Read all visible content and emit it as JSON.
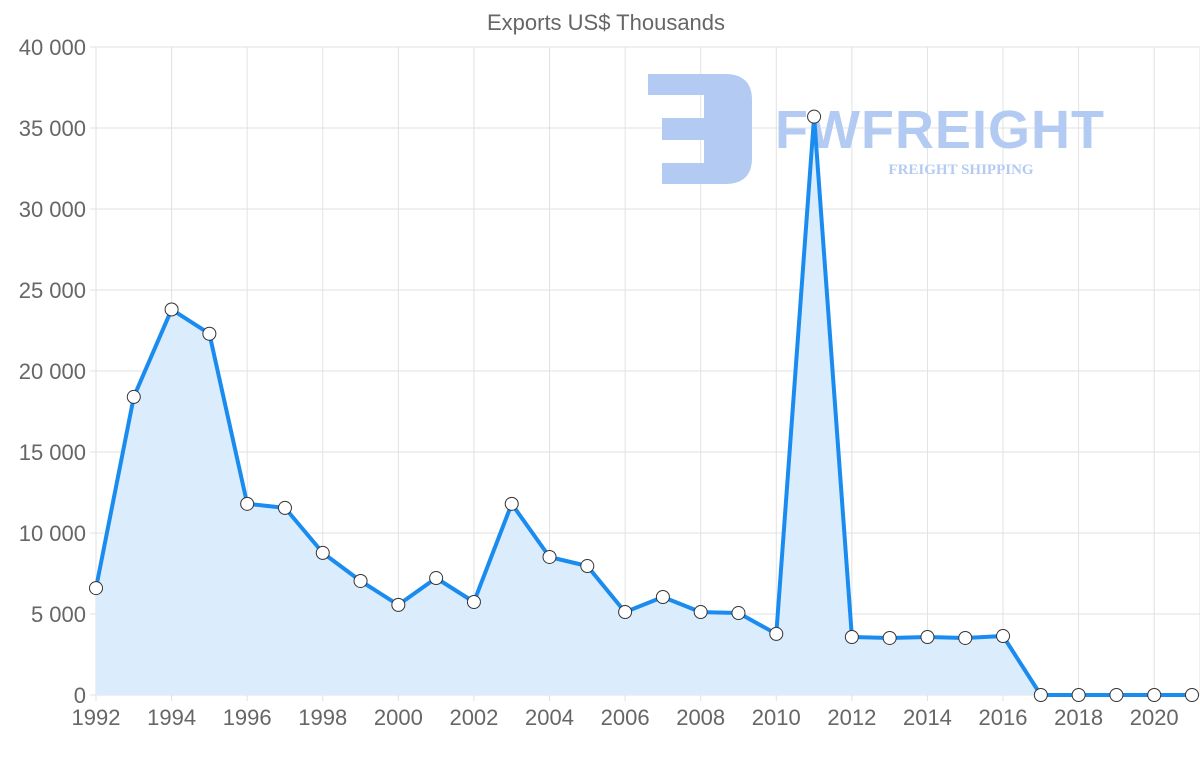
{
  "chart_data": {
    "type": "area",
    "title": "Exports US$ Thousands",
    "xlabel": "",
    "ylabel": "",
    "x": [
      1992,
      1993,
      1994,
      1995,
      1996,
      1997,
      1998,
      1999,
      2000,
      2001,
      2002,
      2003,
      2004,
      2005,
      2006,
      2007,
      2008,
      2009,
      2010,
      2011,
      2012,
      2013,
      2014,
      2015,
      2016,
      2017,
      2018,
      2019,
      2020,
      2021
    ],
    "series": [
      {
        "name": "Exports US$ Thousands",
        "values": [
          6600,
          18400,
          23800,
          22300,
          11800,
          11550,
          8770,
          7040,
          5560,
          7220,
          5740,
          11800,
          8520,
          7960,
          5120,
          6050,
          5120,
          5060,
          3770,
          35700,
          3580,
          3520,
          3580,
          3520,
          3640,
          0,
          0,
          0,
          0,
          0
        ],
        "color": "#1a8cf0",
        "fill": "#dbecfc"
      }
    ],
    "ylim": [
      0,
      40000
    ],
    "xlim": [
      1992,
      2021
    ],
    "yticks": [
      0,
      5000,
      10000,
      15000,
      20000,
      25000,
      30000,
      35000,
      40000
    ],
    "ytick_labels": [
      "0",
      "5 000",
      "10 000",
      "15 000",
      "20 000",
      "25 000",
      "30 000",
      "35 000",
      "40 000"
    ],
    "xticks": [
      1992,
      1994,
      1996,
      1998,
      2000,
      2002,
      2004,
      2006,
      2008,
      2010,
      2012,
      2014,
      2016,
      2018,
      2020
    ],
    "xtick_labels": [
      "1992",
      "1994",
      "1996",
      "1998",
      "2000",
      "2002",
      "2004",
      "2006",
      "2008",
      "2010",
      "2012",
      "2014",
      "2016",
      "2018",
      "2020"
    ],
    "grid": true,
    "legend": "none"
  },
  "watermark": {
    "brand": "FWFREIGHT",
    "tagline": "FREIGHT SHIPPING",
    "color": "#b3cbf3"
  }
}
